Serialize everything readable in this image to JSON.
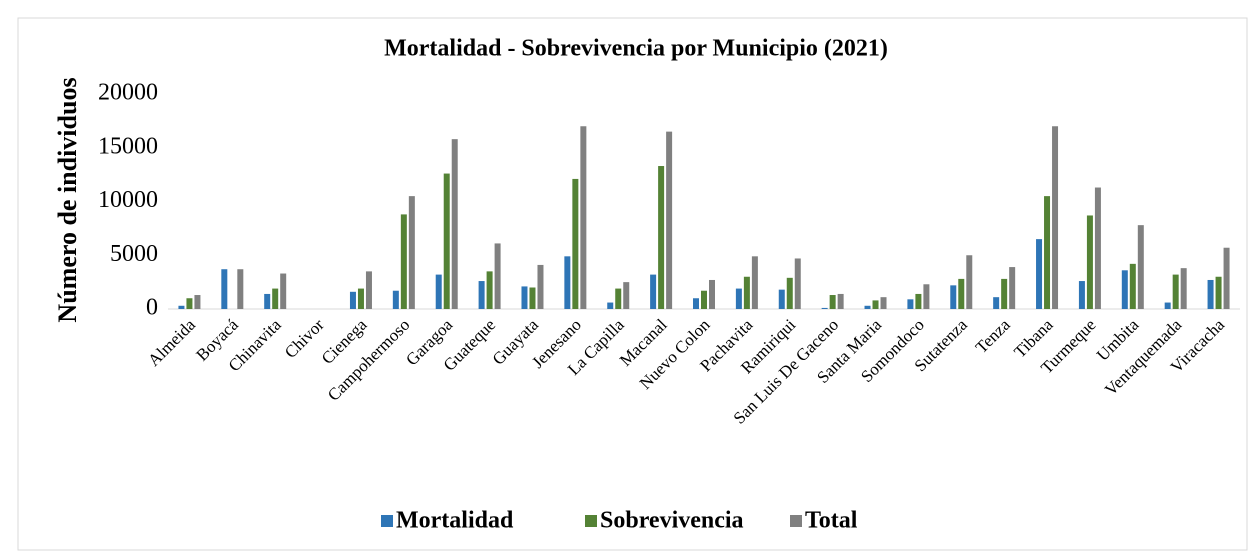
{
  "chart_data": {
    "type": "bar",
    "title": "Mortalidad - Sobrevivencia por Municipio (2021)",
    "y_label": "Número de individuos",
    "categories": [
      "Almeida",
      "Boyacá",
      "Chinavita",
      "Chivor",
      "Cienega",
      "Campohermoso",
      "Garagoa",
      "Guateque",
      "Guayata",
      "Jenesano",
      "La Capilla",
      "Macanal",
      "Nuevo Colon",
      "Pachavita",
      "Ramiriqui",
      "San Luis De Gaceno",
      "Santa Maria",
      "Somondoco",
      "Sutatenza",
      "Tenza",
      "Tibana",
      "Turmeque",
      "Umbita",
      "Ventaquemada",
      "Viracacha"
    ],
    "series": [
      {
        "name": "Mortalidad",
        "color": "#2e75b6",
        "values": [
          300,
          3700,
          1400,
          0,
          1600,
          1700,
          3200,
          2600,
          2100,
          4900,
          600,
          3200,
          1000,
          1900,
          1800,
          100,
          300,
          900,
          2200,
          1100,
          6500,
          2600,
          3600,
          600,
          2700
        ]
      },
      {
        "name": "Sobrevivencia",
        "color": "#548235",
        "values": [
          1000,
          0,
          1900,
          0,
          1900,
          8800,
          12600,
          3500,
          2000,
          12100,
          1900,
          13300,
          1700,
          3000,
          2900,
          1300,
          800,
          1400,
          2800,
          2800,
          10500,
          8700,
          4200,
          3200,
          3000
        ]
      },
      {
        "name": "Total",
        "color": "#808080",
        "values": [
          1300,
          3700,
          3300,
          0,
          3500,
          10500,
          15800,
          6100,
          4100,
          17000,
          2500,
          16500,
          2700,
          4900,
          4700,
          1400,
          1100,
          2300,
          5000,
          3900,
          17000,
          11300,
          7800,
          3800,
          5700
        ]
      }
    ],
    "ylim": [
      0,
      20000
    ],
    "yticks": [
      0,
      5000,
      10000,
      15000,
      20000
    ],
    "grid": false,
    "legend": "bottom"
  }
}
